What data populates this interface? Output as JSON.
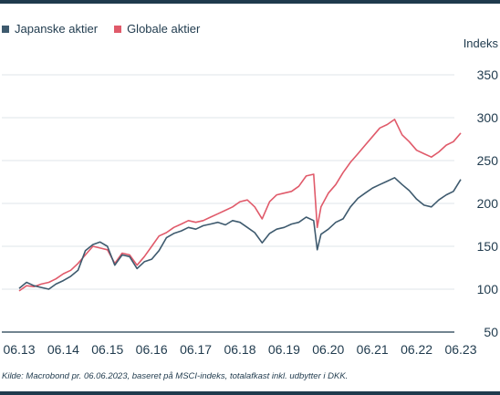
{
  "chart_data": {
    "type": "line",
    "ylabel": "Indeks",
    "ylim": [
      50,
      350
    ],
    "yticks": [
      50,
      100,
      150,
      200,
      250,
      300,
      350
    ],
    "xlim": [
      "2013-06-01",
      "2023-06-01"
    ],
    "xticks": [
      "06.13",
      "06.14",
      "06.15",
      "06.16",
      "06.17",
      "06.18",
      "06.19",
      "06.20",
      "06.21",
      "06.22",
      "06.23"
    ],
    "grid": true,
    "legend_position": "top-left",
    "source": "Kilde: Macrobond pr. 06.06.2023, baseret på MSCI-indeks, totalafkast inkl. udbytter i DKK.",
    "series": [
      {
        "name": "Japanske aktier",
        "color": "#3e5a6e",
        "x": [
          "2013-06",
          "2013-08",
          "2013-10",
          "2013-12",
          "2014-02",
          "2014-04",
          "2014-06",
          "2014-08",
          "2014-10",
          "2014-12",
          "2015-02",
          "2015-04",
          "2015-06",
          "2015-08",
          "2015-10",
          "2015-12",
          "2016-02",
          "2016-04",
          "2016-06",
          "2016-08",
          "2016-10",
          "2016-12",
          "2017-02",
          "2017-04",
          "2017-06",
          "2017-08",
          "2017-10",
          "2017-12",
          "2018-02",
          "2018-04",
          "2018-06",
          "2018-08",
          "2018-10",
          "2018-12",
          "2019-02",
          "2019-04",
          "2019-06",
          "2019-08",
          "2019-10",
          "2019-12",
          "2020-02",
          "2020-03",
          "2020-04",
          "2020-06",
          "2020-08",
          "2020-10",
          "2020-12",
          "2021-02",
          "2021-04",
          "2021-06",
          "2021-08",
          "2021-10",
          "2021-12",
          "2022-02",
          "2022-04",
          "2022-06",
          "2022-08",
          "2022-10",
          "2022-12",
          "2023-02",
          "2023-04",
          "2023-06"
        ],
        "values": [
          101,
          108,
          104,
          102,
          100,
          106,
          110,
          115,
          122,
          145,
          152,
          155,
          150,
          128,
          140,
          138,
          124,
          132,
          135,
          145,
          160,
          165,
          168,
          172,
          170,
          174,
          176,
          178,
          175,
          180,
          178,
          172,
          166,
          154,
          165,
          170,
          172,
          176,
          178,
          184,
          180,
          146,
          164,
          170,
          178,
          182,
          196,
          206,
          212,
          218,
          222,
          226,
          230,
          222,
          215,
          205,
          198,
          196,
          204,
          210,
          214,
          228
        ]
      },
      {
        "name": "Globale aktier",
        "color": "#e05a6a",
        "x": [
          "2013-06",
          "2013-08",
          "2013-10",
          "2013-12",
          "2014-02",
          "2014-04",
          "2014-06",
          "2014-08",
          "2014-10",
          "2014-12",
          "2015-02",
          "2015-04",
          "2015-06",
          "2015-08",
          "2015-10",
          "2015-12",
          "2016-02",
          "2016-04",
          "2016-06",
          "2016-08",
          "2016-10",
          "2016-12",
          "2017-02",
          "2017-04",
          "2017-06",
          "2017-08",
          "2017-10",
          "2017-12",
          "2018-02",
          "2018-04",
          "2018-06",
          "2018-08",
          "2018-10",
          "2018-12",
          "2019-02",
          "2019-04",
          "2019-06",
          "2019-08",
          "2019-10",
          "2019-12",
          "2020-02",
          "2020-03",
          "2020-04",
          "2020-06",
          "2020-08",
          "2020-10",
          "2020-12",
          "2021-02",
          "2021-04",
          "2021-06",
          "2021-08",
          "2021-10",
          "2021-12",
          "2022-02",
          "2022-04",
          "2022-06",
          "2022-08",
          "2022-10",
          "2022-12",
          "2023-02",
          "2023-04",
          "2023-06"
        ],
        "values": [
          98,
          104,
          103,
          106,
          108,
          112,
          118,
          122,
          130,
          140,
          150,
          148,
          146,
          130,
          142,
          140,
          128,
          138,
          150,
          162,
          166,
          172,
          176,
          180,
          178,
          180,
          184,
          188,
          192,
          196,
          202,
          204,
          196,
          182,
          202,
          210,
          212,
          214,
          220,
          232,
          234,
          172,
          196,
          212,
          222,
          236,
          248,
          258,
          268,
          278,
          288,
          292,
          298,
          280,
          272,
          262,
          258,
          254,
          260,
          268,
          272,
          282
        ]
      }
    ]
  }
}
